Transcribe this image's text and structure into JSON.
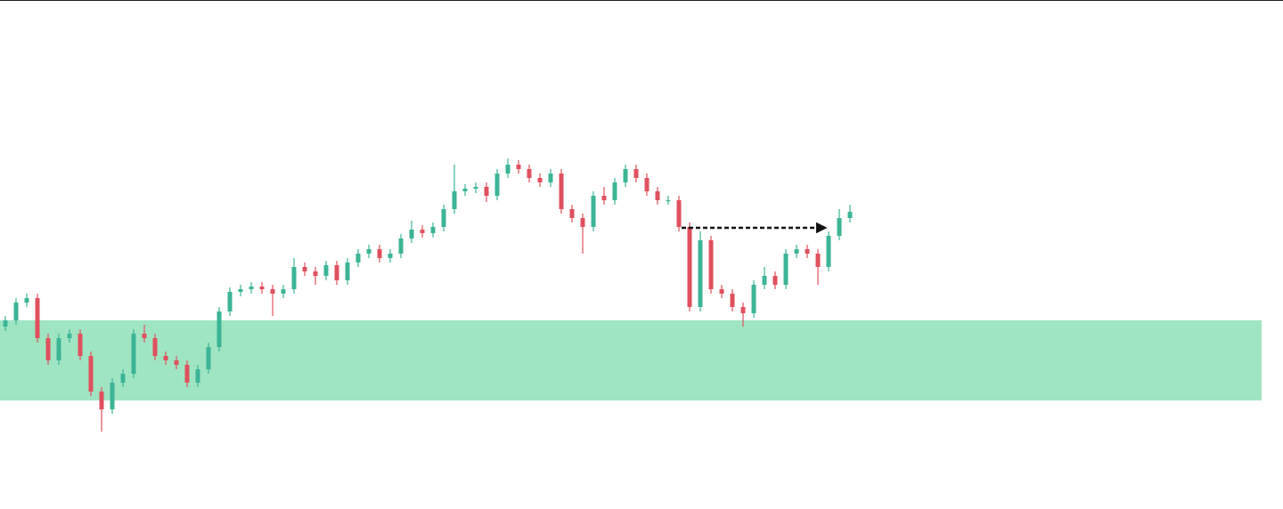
{
  "chart_data": {
    "type": "candlestick",
    "ylim": [
      0,
      572
    ],
    "up_color": "#3cb496",
    "down_color": "#e0505e",
    "zone": {
      "low": 122,
      "high": 212,
      "color": "#9fe5c2"
    },
    "arrow_level": 316,
    "open": [
      205,
      212,
      232,
      237,
      192,
      167,
      192,
      197,
      172,
      132,
      112,
      142,
      152,
      197,
      192,
      172,
      167,
      162,
      142,
      157,
      182,
      222,
      244,
      247,
      250,
      247,
      242,
      247,
      272,
      267,
      262,
      274,
      257,
      277,
      287,
      292,
      282,
      287,
      304,
      314,
      310,
      317,
      337,
      357,
      360,
      362,
      352,
      377,
      387,
      382,
      372,
      367,
      377,
      337,
      327,
      317,
      352,
      347,
      367,
      382,
      372,
      357,
      347,
      347,
      317,
      227,
      302,
      247,
      242,
      227,
      220,
      252,
      262,
      252,
      287,
      292,
      287,
      272,
      307,
      327
    ],
    "high": [
      217,
      237,
      242,
      242,
      197,
      197,
      202,
      202,
      177,
      137,
      147,
      157,
      202,
      207,
      197,
      177,
      172,
      167,
      162,
      187,
      227,
      249,
      252,
      255,
      255,
      252,
      252,
      282,
      277,
      272,
      279,
      279,
      282,
      292,
      297,
      297,
      292,
      309,
      324,
      319,
      322,
      342,
      387,
      365,
      367,
      367,
      382,
      394,
      392,
      387,
      377,
      382,
      382,
      342,
      332,
      357,
      362,
      372,
      387,
      387,
      377,
      362,
      352,
      352,
      322,
      312,
      307,
      252,
      247,
      232,
      257,
      272,
      267,
      292,
      297,
      297,
      292,
      312,
      337,
      342
    ],
    "low": [
      200,
      207,
      227,
      187,
      162,
      162,
      187,
      167,
      127,
      87,
      107,
      137,
      147,
      187,
      167,
      162,
      157,
      137,
      137,
      152,
      177,
      217,
      239,
      242,
      242,
      217,
      237,
      242,
      262,
      252,
      257,
      252,
      252,
      272,
      282,
      277,
      277,
      282,
      299,
      305,
      305,
      312,
      332,
      352,
      355,
      345,
      347,
      372,
      377,
      367,
      362,
      362,
      332,
      322,
      287,
      312,
      342,
      342,
      362,
      367,
      352,
      342,
      342,
      312,
      222,
      222,
      242,
      237,
      222,
      205,
      215,
      247,
      247,
      247,
      282,
      282,
      252,
      267,
      302,
      322
    ],
    "close": [
      212,
      232,
      237,
      192,
      167,
      192,
      197,
      172,
      132,
      112,
      142,
      152,
      197,
      192,
      172,
      167,
      162,
      142,
      157,
      182,
      222,
      244,
      247,
      250,
      247,
      242,
      247,
      272,
      267,
      262,
      274,
      257,
      277,
      287,
      292,
      282,
      287,
      304,
      314,
      310,
      317,
      337,
      357,
      360,
      362,
      352,
      377,
      387,
      382,
      372,
      367,
      377,
      337,
      327,
      317,
      352,
      347,
      367,
      382,
      372,
      357,
      347,
      347,
      317,
      227,
      302,
      247,
      242,
      227,
      220,
      252,
      262,
      252,
      287,
      292,
      287,
      272,
      307,
      327,
      334
    ]
  }
}
